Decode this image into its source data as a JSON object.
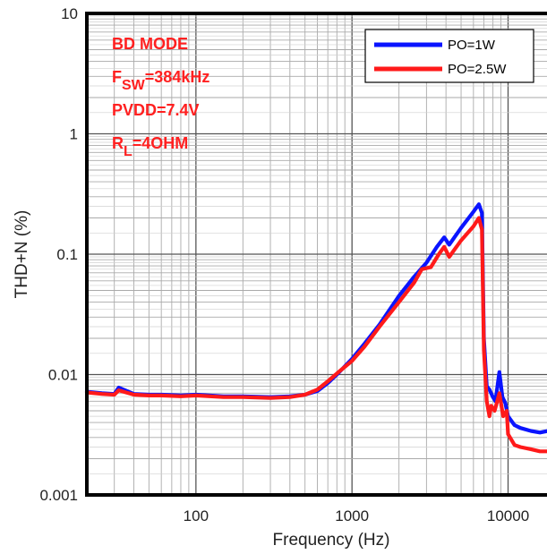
{
  "chart_data": {
    "type": "line",
    "xlabel": "Frequency (Hz)",
    "ylabel": "THD+N (%)",
    "x_scale": "log",
    "y_scale": "log",
    "xlim": [
      20,
      20000
    ],
    "ylim": [
      0.001,
      10
    ],
    "x_ticks": [
      {
        "value": 100,
        "label": "100"
      },
      {
        "value": 1000,
        "label": "1000"
      },
      {
        "value": 10000,
        "label": "10000"
      }
    ],
    "y_ticks": [
      {
        "value": 10,
        "label": "10"
      },
      {
        "value": 1,
        "label": "1"
      },
      {
        "value": 0.1,
        "label": "0.1"
      },
      {
        "value": 0.01,
        "label": "0.01"
      },
      {
        "value": 0.001,
        "label": "0.001"
      }
    ],
    "grid": true,
    "legend_position": "top-right",
    "annotations": [
      {
        "base": "BD MODE",
        "sub": ""
      },
      {
        "base": "F",
        "sub": "SW",
        "rest": "=384kHz"
      },
      {
        "base": "PVDD=7.4V",
        "sub": ""
      },
      {
        "base": "R",
        "sub": "L",
        "rest": "=4OHM"
      }
    ],
    "annotation_color": "#ff2020",
    "series": [
      {
        "name": "PO=1W",
        "color": "#0a14ff",
        "x": [
          20,
          25,
          30,
          32,
          40,
          50,
          60,
          80,
          100,
          150,
          200,
          300,
          400,
          500,
          600,
          700,
          800,
          1000,
          1200,
          1500,
          2000,
          2500,
          3000,
          3500,
          3900,
          4200,
          5000,
          6000,
          6500,
          6800,
          7000,
          7300,
          7600,
          8000,
          8300,
          8800,
          9200,
          9600,
          10000,
          11000,
          12000,
          14000,
          16000,
          18000,
          20000
        ],
        "y": [
          0.0072,
          0.007,
          0.0069,
          0.0078,
          0.0069,
          0.0068,
          0.0068,
          0.0067,
          0.0068,
          0.0066,
          0.0066,
          0.0065,
          0.0066,
          0.0068,
          0.0073,
          0.0085,
          0.01,
          0.0135,
          0.018,
          0.026,
          0.045,
          0.065,
          0.085,
          0.115,
          0.138,
          0.12,
          0.165,
          0.225,
          0.26,
          0.22,
          0.02,
          0.008,
          0.0075,
          0.0065,
          0.006,
          0.0105,
          0.0065,
          0.0058,
          0.0045,
          0.0038,
          0.0036,
          0.0034,
          0.0033,
          0.0034,
          0.0033
        ]
      },
      {
        "name": "PO=2.5W",
        "color": "#ff1a1a",
        "x": [
          20,
          25,
          30,
          32,
          40,
          50,
          60,
          80,
          100,
          150,
          200,
          300,
          400,
          500,
          600,
          700,
          800,
          1000,
          1200,
          1500,
          2000,
          2500,
          2800,
          3200,
          3600,
          3900,
          4200,
          5000,
          6000,
          6500,
          6800,
          7000,
          7300,
          7600,
          7800,
          8200,
          8800,
          9300,
          9800,
          10000,
          11000,
          12000,
          14000,
          16000,
          18000,
          20000
        ],
        "y": [
          0.0071,
          0.0069,
          0.0068,
          0.0074,
          0.0068,
          0.0067,
          0.0067,
          0.0066,
          0.0067,
          0.0065,
          0.0065,
          0.0064,
          0.0065,
          0.0068,
          0.0075,
          0.0088,
          0.0102,
          0.013,
          0.017,
          0.025,
          0.04,
          0.058,
          0.075,
          0.078,
          0.1,
          0.115,
          0.095,
          0.13,
          0.17,
          0.2,
          0.16,
          0.016,
          0.006,
          0.0045,
          0.0055,
          0.005,
          0.007,
          0.0045,
          0.005,
          0.0032,
          0.0026,
          0.0025,
          0.0024,
          0.0023,
          0.0023,
          0.0022
        ]
      }
    ]
  }
}
